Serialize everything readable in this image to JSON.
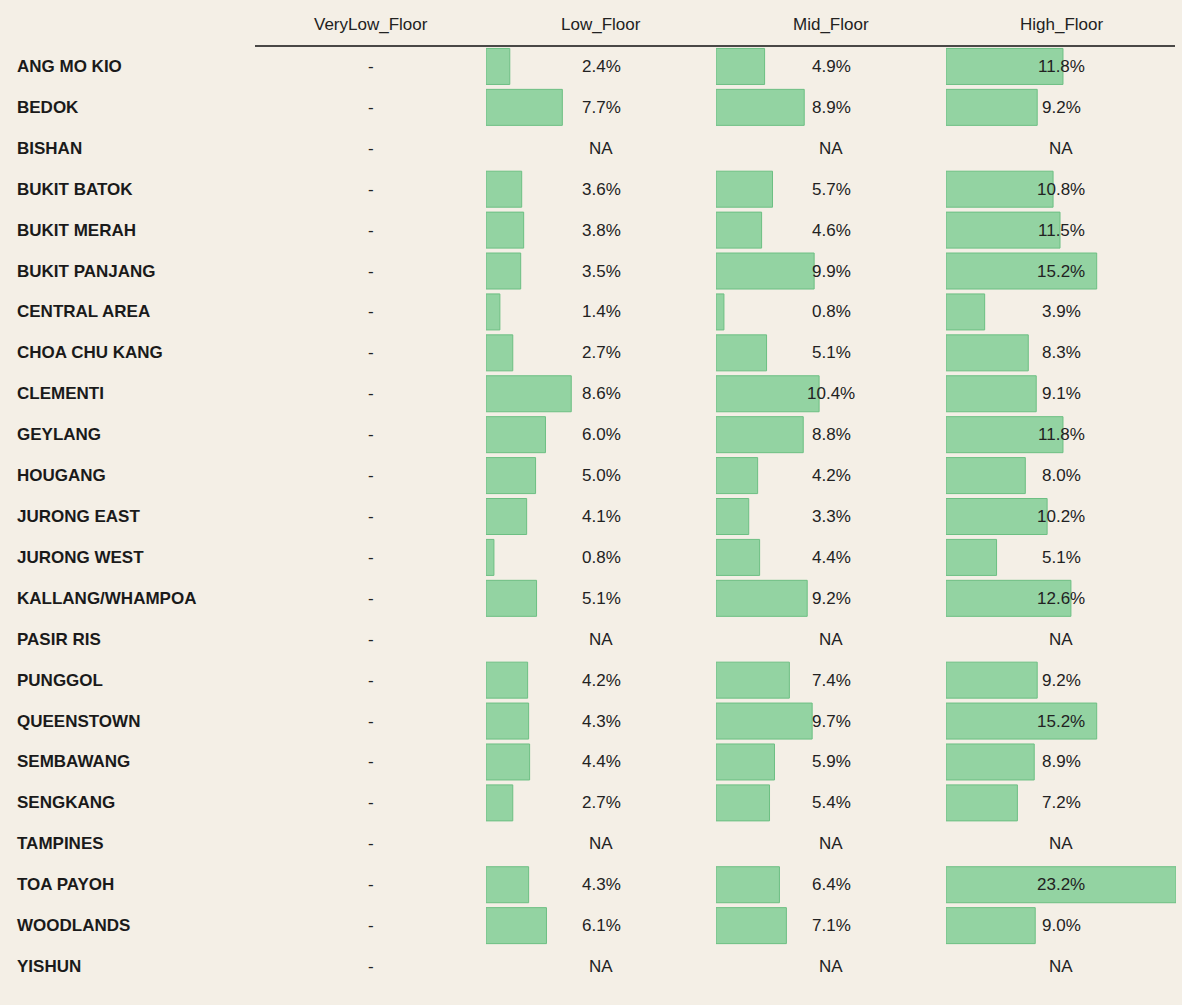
{
  "chart_data": {
    "type": "bar",
    "orientation": "horizontal",
    "categories": [
      "ANG MO KIO",
      "BEDOK",
      "BISHAN",
      "BUKIT BATOK",
      "BUKIT MERAH",
      "BUKIT PANJANG",
      "CENTRAL AREA",
      "CHOA CHU KANG",
      "CLEMENTI",
      "GEYLANG",
      "HOUGANG",
      "JURONG EAST",
      "JURONG WEST",
      "KALLANG/WHAMPOA",
      "PASIR RIS",
      "PUNGGOL",
      "QUEENSTOWN",
      "SEMBAWANG",
      "SENGKANG",
      "TAMPINES",
      "TOA PAYOH",
      "WOODLANDS",
      "YISHUN"
    ],
    "series": [
      {
        "name": "VeryLow_Floor",
        "values": [
          null,
          null,
          null,
          null,
          null,
          null,
          null,
          null,
          null,
          null,
          null,
          null,
          null,
          null,
          null,
          null,
          null,
          null,
          null,
          null,
          null,
          null,
          null
        ],
        "value_labels": [
          "-",
          "-",
          "-",
          "-",
          "-",
          "-",
          "-",
          "-",
          "-",
          "-",
          "-",
          "-",
          "-",
          "-",
          "-",
          "-",
          "-",
          "-",
          "-",
          "-",
          "-",
          "-",
          "-"
        ]
      },
      {
        "name": "Low_Floor",
        "values": [
          2.4,
          7.7,
          null,
          3.6,
          3.8,
          3.5,
          1.4,
          2.7,
          8.6,
          6.0,
          5.0,
          4.1,
          0.8,
          5.1,
          null,
          4.2,
          4.3,
          4.4,
          2.7,
          null,
          4.3,
          6.1,
          null
        ],
        "value_labels": [
          "2.4%",
          "7.7%",
          "NA",
          "3.6%",
          "3.8%",
          "3.5%",
          "1.4%",
          "2.7%",
          "8.6%",
          "6.0%",
          "5.0%",
          "4.1%",
          "0.8%",
          "5.1%",
          "NA",
          "4.2%",
          "4.3%",
          "4.4%",
          "2.7%",
          "NA",
          "4.3%",
          "6.1%",
          "NA"
        ]
      },
      {
        "name": "Mid_Floor",
        "values": [
          4.9,
          8.9,
          null,
          5.7,
          4.6,
          9.9,
          0.8,
          5.1,
          10.4,
          8.8,
          4.2,
          3.3,
          4.4,
          9.2,
          null,
          7.4,
          9.7,
          5.9,
          5.4,
          null,
          6.4,
          7.1,
          null
        ],
        "value_labels": [
          "4.9%",
          "8.9%",
          "NA",
          "5.7%",
          "4.6%",
          "9.9%",
          "0.8%",
          "5.1%",
          "10.4%",
          "8.8%",
          "4.2%",
          "3.3%",
          "4.4%",
          "9.2%",
          "NA",
          "7.4%",
          "9.7%",
          "5.9%",
          "5.4%",
          "NA",
          "6.4%",
          "7.1%",
          "NA"
        ]
      },
      {
        "name": "High_Floor",
        "values": [
          11.8,
          9.2,
          null,
          10.8,
          11.5,
          15.2,
          3.9,
          8.3,
          9.1,
          11.8,
          8.0,
          10.2,
          5.1,
          12.6,
          null,
          9.2,
          15.2,
          8.9,
          7.2,
          null,
          23.2,
          9.0,
          null
        ],
        "value_labels": [
          "11.8%",
          "9.2%",
          "NA",
          "10.8%",
          "11.5%",
          "15.2%",
          "3.9%",
          "8.3%",
          "9.1%",
          "11.8%",
          "8.0%",
          "10.2%",
          "5.1%",
          "12.6%",
          "NA",
          "9.2%",
          "15.2%",
          "8.9%",
          "7.2%",
          "NA",
          "23.2%",
          "9.0%",
          "NA"
        ]
      }
    ],
    "color": "#93d3a2",
    "xlim": [
      0,
      23.2
    ],
    "data_labels": true,
    "tick_labels": false,
    "grid": false
  }
}
